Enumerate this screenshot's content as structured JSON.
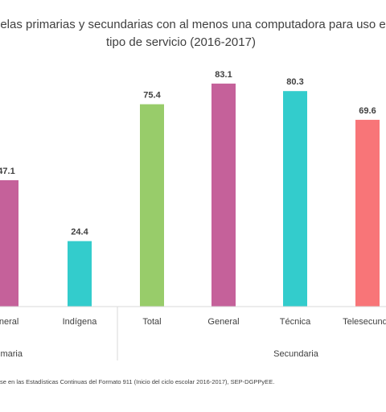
{
  "title_line1": "uelas primarias y secundarias con al menos una computadora para uso e",
  "title_line2": "tipo de servicio (2016-2017)",
  "source_note": "se en las Estadísticas Continuas del Formato 911 (Inicio del ciclo escolar 2016-2017),  SEP-DGPPyEE.",
  "chart_data": {
    "type": "bar",
    "groups": [
      "imaria",
      "Secundaria"
    ],
    "categories": [
      "eneral",
      "Indígena",
      "Total",
      "General",
      "Técnica",
      "Telesecunda"
    ],
    "values": [
      47.1,
      24.4,
      75.4,
      83.1,
      80.3,
      69.6
    ],
    "value_labels": [
      "47.1",
      "24.4",
      "75.4",
      "83.1",
      "80.3",
      "69.6"
    ],
    "colors": [
      "#c5619a",
      "#33cccc",
      "#98cc6a",
      "#c5619a",
      "#33cccc",
      "#f87578"
    ],
    "ylim": [
      0,
      100
    ],
    "grid": false
  }
}
